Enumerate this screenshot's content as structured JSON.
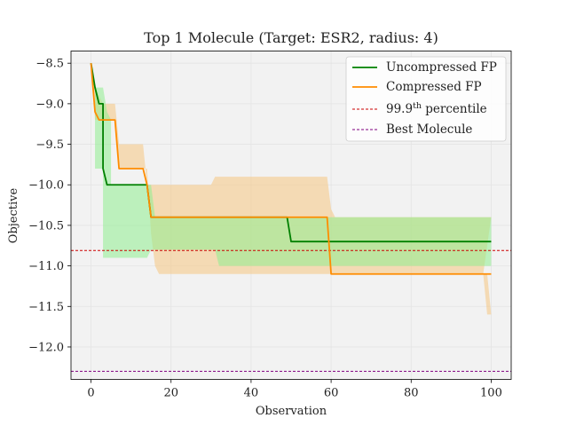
{
  "chart_data": {
    "type": "line",
    "title": "Top 1 Molecule (Target: ESR2, radius: 4)",
    "xlabel": "Observation",
    "ylabel": "Objective",
    "xlim": [
      -5,
      105
    ],
    "ylim": [
      -12.4,
      -8.35
    ],
    "xticks": [
      0,
      20,
      40,
      60,
      80,
      100
    ],
    "yticks": [
      -8.5,
      -9.0,
      -9.5,
      -10.0,
      -10.5,
      -11.0,
      -11.5,
      -12.0
    ],
    "xtick_labels": [
      "0",
      "20",
      "40",
      "60",
      "80",
      "100"
    ],
    "ytick_labels": [
      "−8.5",
      "−9.0",
      "−9.5",
      "−10.0",
      "−10.5",
      "−11.0",
      "−11.5",
      "−12.0"
    ],
    "grid": true,
    "legend_position": "top-right",
    "series": [
      {
        "name": "Uncompressed FP",
        "color": "#008000",
        "band_color": "#90ee90",
        "points": [
          [
            0,
            -8.5
          ],
          [
            1,
            -8.8
          ],
          [
            2,
            -9.0
          ],
          [
            3,
            -9.0
          ],
          [
            3,
            -9.8
          ],
          [
            4,
            -10.0
          ],
          [
            14,
            -10.0
          ],
          [
            15,
            -10.4
          ],
          [
            49,
            -10.4
          ],
          [
            50,
            -10.7
          ],
          [
            100,
            -10.7
          ]
        ],
        "band_upper": [
          [
            1,
            -8.8
          ],
          [
            3,
            -8.8
          ],
          [
            4,
            -9.1
          ],
          [
            5,
            -9.2
          ],
          [
            5,
            -10.0
          ],
          [
            15,
            -10.0
          ],
          [
            16,
            -10.4
          ],
          [
            100,
            -10.4
          ]
        ],
        "band_lower": [
          [
            1,
            -9.0
          ],
          [
            1,
            -9.8
          ],
          [
            3,
            -9.8
          ],
          [
            3,
            -10.9
          ],
          [
            14,
            -10.9
          ],
          [
            15,
            -10.8
          ],
          [
            31,
            -10.8
          ],
          [
            32,
            -11.0
          ],
          [
            100,
            -11.0
          ]
        ]
      },
      {
        "name": "Compressed FP",
        "color": "#ff8c00",
        "band_color": "#f5c98a",
        "points": [
          [
            0,
            -8.5
          ],
          [
            1,
            -9.1
          ],
          [
            2,
            -9.2
          ],
          [
            6,
            -9.2
          ],
          [
            7,
            -9.8
          ],
          [
            13,
            -9.8
          ],
          [
            14,
            -10.0
          ],
          [
            15,
            -10.4
          ],
          [
            59,
            -10.4
          ],
          [
            60,
            -11.1
          ],
          [
            100,
            -11.1
          ]
        ],
        "band_upper": [
          [
            0,
            -8.5
          ],
          [
            1,
            -8.8
          ],
          [
            3,
            -9.0
          ],
          [
            6,
            -9.0
          ],
          [
            7,
            -9.5
          ],
          [
            13,
            -9.5
          ],
          [
            14,
            -10.0
          ],
          [
            30,
            -10.0
          ],
          [
            31,
            -9.9
          ],
          [
            59,
            -9.9
          ],
          [
            60,
            -10.3
          ],
          [
            61,
            -10.4
          ],
          [
            100,
            -10.4
          ]
        ],
        "band_lower": [
          [
            0,
            -8.5
          ],
          [
            1,
            -9.2
          ],
          [
            6,
            -9.2
          ],
          [
            7,
            -9.8
          ],
          [
            14,
            -9.8
          ],
          [
            15,
            -10.6
          ],
          [
            16,
            -11.0
          ],
          [
            17,
            -11.1
          ],
          [
            100,
            -11.1
          ],
          [
            99,
            -11.1
          ],
          [
            100,
            -11.6
          ],
          [
            99,
            -11.6
          ],
          [
            98,
            -11.1
          ]
        ]
      }
    ],
    "reference_lines": [
      {
        "name": "99.9th percentile",
        "label_base": "99.9",
        "label_sup": "th",
        "label_rest": " percentile",
        "y": -10.81,
        "color": "#cc0000",
        "style": "dashed"
      },
      {
        "name": "Best Molecule",
        "y": -12.3,
        "color": "#800080",
        "style": "dashed"
      }
    ]
  }
}
